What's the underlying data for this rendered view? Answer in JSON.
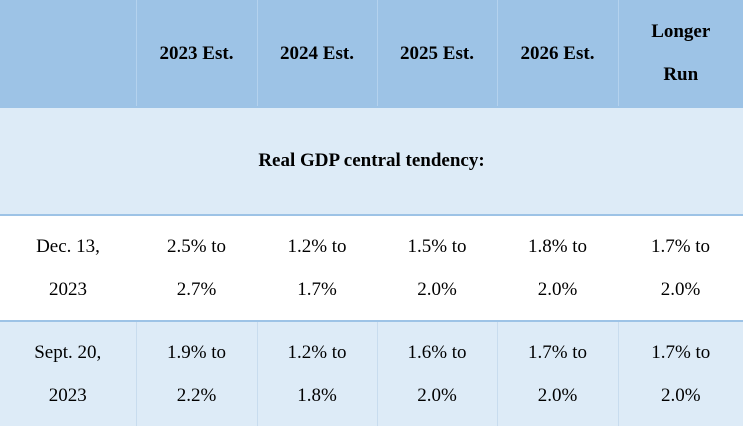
{
  "header": {
    "columns": [
      {
        "lines": [
          ""
        ]
      },
      {
        "lines": [
          "2023 Est."
        ]
      },
      {
        "lines": [
          "2024 Est."
        ]
      },
      {
        "lines": [
          "2025 Est."
        ]
      },
      {
        "lines": [
          "2026 Est."
        ]
      },
      {
        "lines": [
          "Longer",
          "Run"
        ]
      }
    ]
  },
  "section": {
    "title": "Real GDP central tendency:"
  },
  "rows": [
    {
      "date": [
        "Dec. 13,",
        "2023"
      ],
      "cells": [
        [
          "2.5% to",
          "2.7%"
        ],
        [
          "1.2% to",
          "1.7%"
        ],
        [
          "1.5% to",
          "2.0%"
        ],
        [
          "1.8% to",
          "2.0%"
        ],
        [
          "1.7% to",
          "2.0%"
        ]
      ]
    },
    {
      "date": [
        "Sept. 20,",
        "2023"
      ],
      "cells": [
        [
          "1.9% to",
          "2.2%"
        ],
        [
          "1.2% to",
          "1.8%"
        ],
        [
          "1.6% to",
          "2.0%"
        ],
        [
          "1.7% to",
          "2.0%"
        ],
        [
          "1.7% to",
          "2.0%"
        ]
      ]
    }
  ],
  "colors": {
    "header_bg": "#9dc3e6",
    "band_bg": "#ddebf7",
    "rule": "#9dc3e6"
  }
}
